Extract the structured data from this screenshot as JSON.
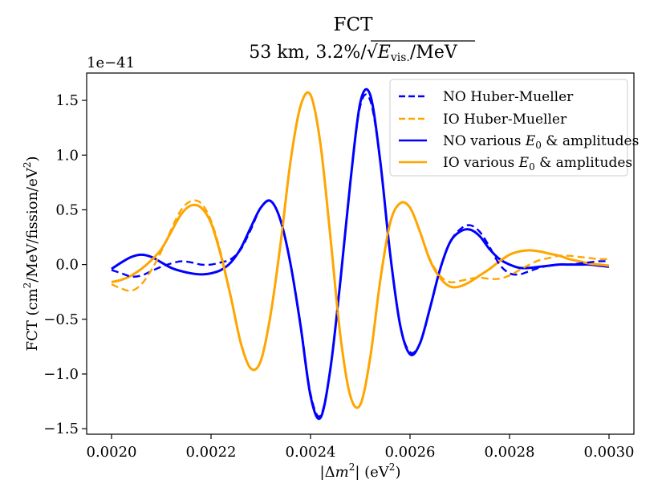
{
  "chart_data": {
    "type": "line",
    "title": "FCT",
    "subtitle_prefix": "53 km, 3.2%/",
    "subtitle_sqrt_var": "E",
    "subtitle_sqrt_sub": "vis.",
    "subtitle_sqrt_unit": "/MeV",
    "xlabel_abs_open": "|Δ",
    "xlabel_m": "m",
    "xlabel_exp": "2",
    "xlabel_close": "| (eV",
    "xlabel_unit_exp": "2",
    "xlabel_end": ")",
    "ylabel_main": "FCT (cm",
    "ylabel_exp1": "2",
    "ylabel_mid": "/MeV/fission/eV",
    "ylabel_exp2": "2",
    "ylabel_end": ")",
    "offset_text": "1e−41",
    "xlim": [
      0.00195,
      0.00305
    ],
    "ylim": [
      -1.55,
      1.75
    ],
    "xticks": [
      {
        "v": 0.002,
        "label": "0.0020"
      },
      {
        "v": 0.0022,
        "label": "0.0022"
      },
      {
        "v": 0.0024,
        "label": "0.0024"
      },
      {
        "v": 0.0026,
        "label": "0.0026"
      },
      {
        "v": 0.0028,
        "label": "0.0028"
      },
      {
        "v": 0.003,
        "label": "0.0030"
      }
    ],
    "yticks": [
      {
        "v": -1.5,
        "label": "−1.5"
      },
      {
        "v": -1.0,
        "label": "−1.0"
      },
      {
        "v": -0.5,
        "label": "−0.5"
      },
      {
        "v": 0.0,
        "label": "0.0"
      },
      {
        "v": 0.5,
        "label": "0.5"
      },
      {
        "v": 1.0,
        "label": "1.0"
      },
      {
        "v": 1.5,
        "label": "1.5"
      }
    ],
    "legend_position": "upper right",
    "legend": [
      {
        "label": "NO Huber-Mueller",
        "color": "#0000ff",
        "style": "dashed"
      },
      {
        "label": "IO Huber-Mueller",
        "color": "#ffa500",
        "style": "dashed"
      },
      {
        "label_prefix": "NO various ",
        "label_var": "E",
        "label_sub": "0",
        "label_suffix": " & amplitudes",
        "color": "#0000ff",
        "style": "solid"
      },
      {
        "label_prefix": "IO various ",
        "label_var": "E",
        "label_sub": "0",
        "label_suffix": " & amplitudes",
        "color": "#ffa500",
        "style": "solid"
      }
    ],
    "x": [
      0.002,
      0.00202,
      0.00204,
      0.00206,
      0.00208,
      0.0021,
      0.00212,
      0.00214,
      0.00216,
      0.00218,
      0.0022,
      0.00222,
      0.00224,
      0.00226,
      0.00228,
      0.0023,
      0.00232,
      0.00234,
      0.00236,
      0.00238,
      0.0024,
      0.00242,
      0.00244,
      0.00246,
      0.00248,
      0.0025,
      0.00252,
      0.00254,
      0.00256,
      0.00258,
      0.0026,
      0.00262,
      0.00264,
      0.00266,
      0.00268,
      0.0027,
      0.00272,
      0.00274,
      0.00276,
      0.00278,
      0.0028,
      0.00282,
      0.00284,
      0.00286,
      0.00288,
      0.0029,
      0.00292,
      0.00294,
      0.00296,
      0.00298,
      0.003
    ],
    "series": [
      {
        "name": "NO Huber-Mueller",
        "color": "#0000ff",
        "style": "dashed",
        "values": [
          -0.05,
          -0.08,
          -0.11,
          -0.1,
          -0.06,
          -0.02,
          0.01,
          0.03,
          0.02,
          0.0,
          0.0,
          0.02,
          0.05,
          0.14,
          0.32,
          0.52,
          0.58,
          0.4,
          0.0,
          -0.55,
          -1.18,
          -1.38,
          -0.95,
          -0.15,
          0.75,
          1.45,
          1.5,
          0.95,
          0.1,
          -0.55,
          -0.8,
          -0.72,
          -0.4,
          -0.05,
          0.2,
          0.32,
          0.36,
          0.3,
          0.16,
          0.0,
          -0.08,
          -0.09,
          -0.06,
          -0.03,
          -0.01,
          0.0,
          0.0,
          0.01,
          0.02,
          0.03,
          0.03
        ]
      },
      {
        "name": "IO Huber-Mueller",
        "color": "#ffa500",
        "style": "dashed",
        "values": [
          -0.18,
          -0.22,
          -0.24,
          -0.18,
          -0.05,
          0.12,
          0.32,
          0.5,
          0.58,
          0.56,
          0.4,
          0.1,
          -0.3,
          -0.72,
          -0.95,
          -0.88,
          -0.45,
          0.2,
          0.95,
          1.45,
          1.55,
          1.1,
          0.25,
          -0.65,
          -1.2,
          -1.28,
          -0.85,
          -0.15,
          0.38,
          0.56,
          0.52,
          0.3,
          0.05,
          -0.1,
          -0.16,
          -0.15,
          -0.13,
          -0.12,
          -0.13,
          -0.13,
          -0.1,
          -0.05,
          0.0,
          0.04,
          0.06,
          0.08,
          0.08,
          0.07,
          0.06,
          0.05,
          0.05
        ]
      },
      {
        "name": "NO various E0 & amplitudes",
        "color": "#0000ff",
        "style": "solid",
        "values": [
          -0.04,
          0.02,
          0.07,
          0.09,
          0.07,
          0.02,
          -0.03,
          -0.06,
          -0.08,
          -0.09,
          -0.08,
          -0.05,
          0.02,
          0.15,
          0.34,
          0.52,
          0.58,
          0.4,
          0.0,
          -0.56,
          -1.2,
          -1.4,
          -0.95,
          -0.15,
          0.75,
          1.48,
          1.55,
          0.95,
          0.1,
          -0.55,
          -0.82,
          -0.72,
          -0.4,
          -0.05,
          0.2,
          0.3,
          0.32,
          0.26,
          0.14,
          0.05,
          0.0,
          -0.03,
          -0.03,
          -0.02,
          -0.01,
          0.0,
          0.0,
          0.0,
          0.0,
          -0.01,
          -0.02
        ]
      },
      {
        "name": "IO various E0 & amplitudes",
        "color": "#ffa500",
        "style": "solid",
        "values": [
          -0.16,
          -0.14,
          -0.1,
          -0.04,
          0.04,
          0.14,
          0.3,
          0.46,
          0.54,
          0.52,
          0.38,
          0.08,
          -0.3,
          -0.72,
          -0.95,
          -0.88,
          -0.45,
          0.2,
          0.95,
          1.45,
          1.55,
          1.1,
          0.25,
          -0.65,
          -1.2,
          -1.28,
          -0.85,
          -0.15,
          0.38,
          0.56,
          0.52,
          0.3,
          0.04,
          -0.12,
          -0.2,
          -0.2,
          -0.16,
          -0.1,
          -0.04,
          0.03,
          0.09,
          0.12,
          0.13,
          0.12,
          0.1,
          0.08,
          0.05,
          0.03,
          0.01,
          0.0,
          -0.01
        ]
      }
    ]
  }
}
